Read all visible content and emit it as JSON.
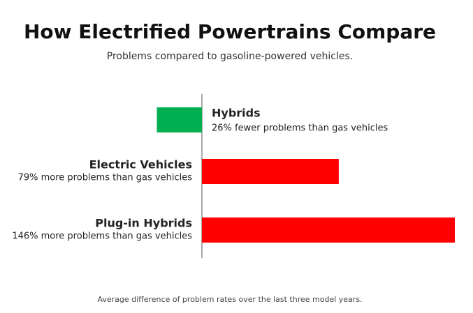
{
  "chart_data": {
    "type": "bar",
    "orientation": "horizontal",
    "title": "How Electrified Powertrains Compare",
    "subtitle": "Problems compared to gasoline-powered vehicles.",
    "footnote": "Average difference of problem rates over the last three model years.",
    "categories": [
      "Hybrids",
      "Electric Vehicles",
      "Plug-in Hybrids"
    ],
    "values": [
      -26,
      79,
      146
    ],
    "value_labels": [
      "26% fewer problems than gas vehicles",
      "79% more problems than gas vehicles",
      "146% more problems than gas vehicles"
    ],
    "colors": [
      "#00b050",
      "#ff0000",
      "#ff0000"
    ]
  }
}
